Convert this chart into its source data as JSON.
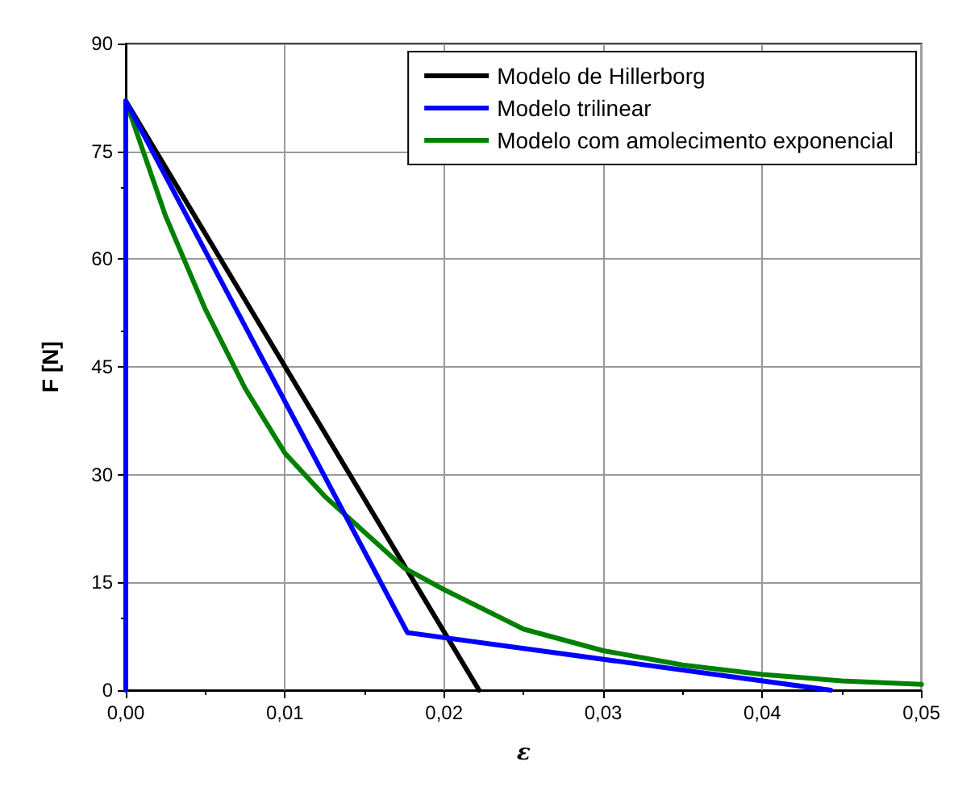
{
  "chart_data": {
    "type": "line",
    "xlabel": "ε",
    "ylabel": "F [N]",
    "xlim": [
      0,
      0.05
    ],
    "ylim": [
      0,
      90
    ],
    "xticks": [
      {
        "value": 0,
        "label": "0,00"
      },
      {
        "value": 0.01,
        "label": "0,01"
      },
      {
        "value": 0.02,
        "label": "0,02"
      },
      {
        "value": 0.03,
        "label": "0,03"
      },
      {
        "value": 0.04,
        "label": "0,04"
      },
      {
        "value": 0.05,
        "label": "0,05"
      }
    ],
    "yticks": [
      0,
      15,
      30,
      45,
      60,
      75,
      90
    ],
    "grid": true,
    "legend": "top right",
    "marker": "none",
    "line_style": "solid",
    "series": [
      {
        "name": "Modelo de Hillerborg",
        "color": "#000000",
        "x": [
          0,
          0.0222
        ],
        "values": [
          82,
          0
        ]
      },
      {
        "name": "Modelo trilinear",
        "color": "#0000ff",
        "x": [
          0,
          0,
          0.0177,
          0.0443
        ],
        "values": [
          0,
          82,
          8,
          0
        ]
      },
      {
        "name": "Modelo com amolecimento exponencial",
        "color": "#008000",
        "x": [
          0,
          0.0025,
          0.005,
          0.0075,
          0.01,
          0.0125,
          0.015,
          0.0175,
          0.02,
          0.025,
          0.03,
          0.035,
          0.04,
          0.045,
          0.05
        ],
        "values": [
          82,
          66,
          53,
          42,
          33,
          27,
          22,
          17,
          14,
          8.5,
          5.5,
          3.5,
          2.2,
          1.3,
          0.8
        ]
      }
    ]
  }
}
